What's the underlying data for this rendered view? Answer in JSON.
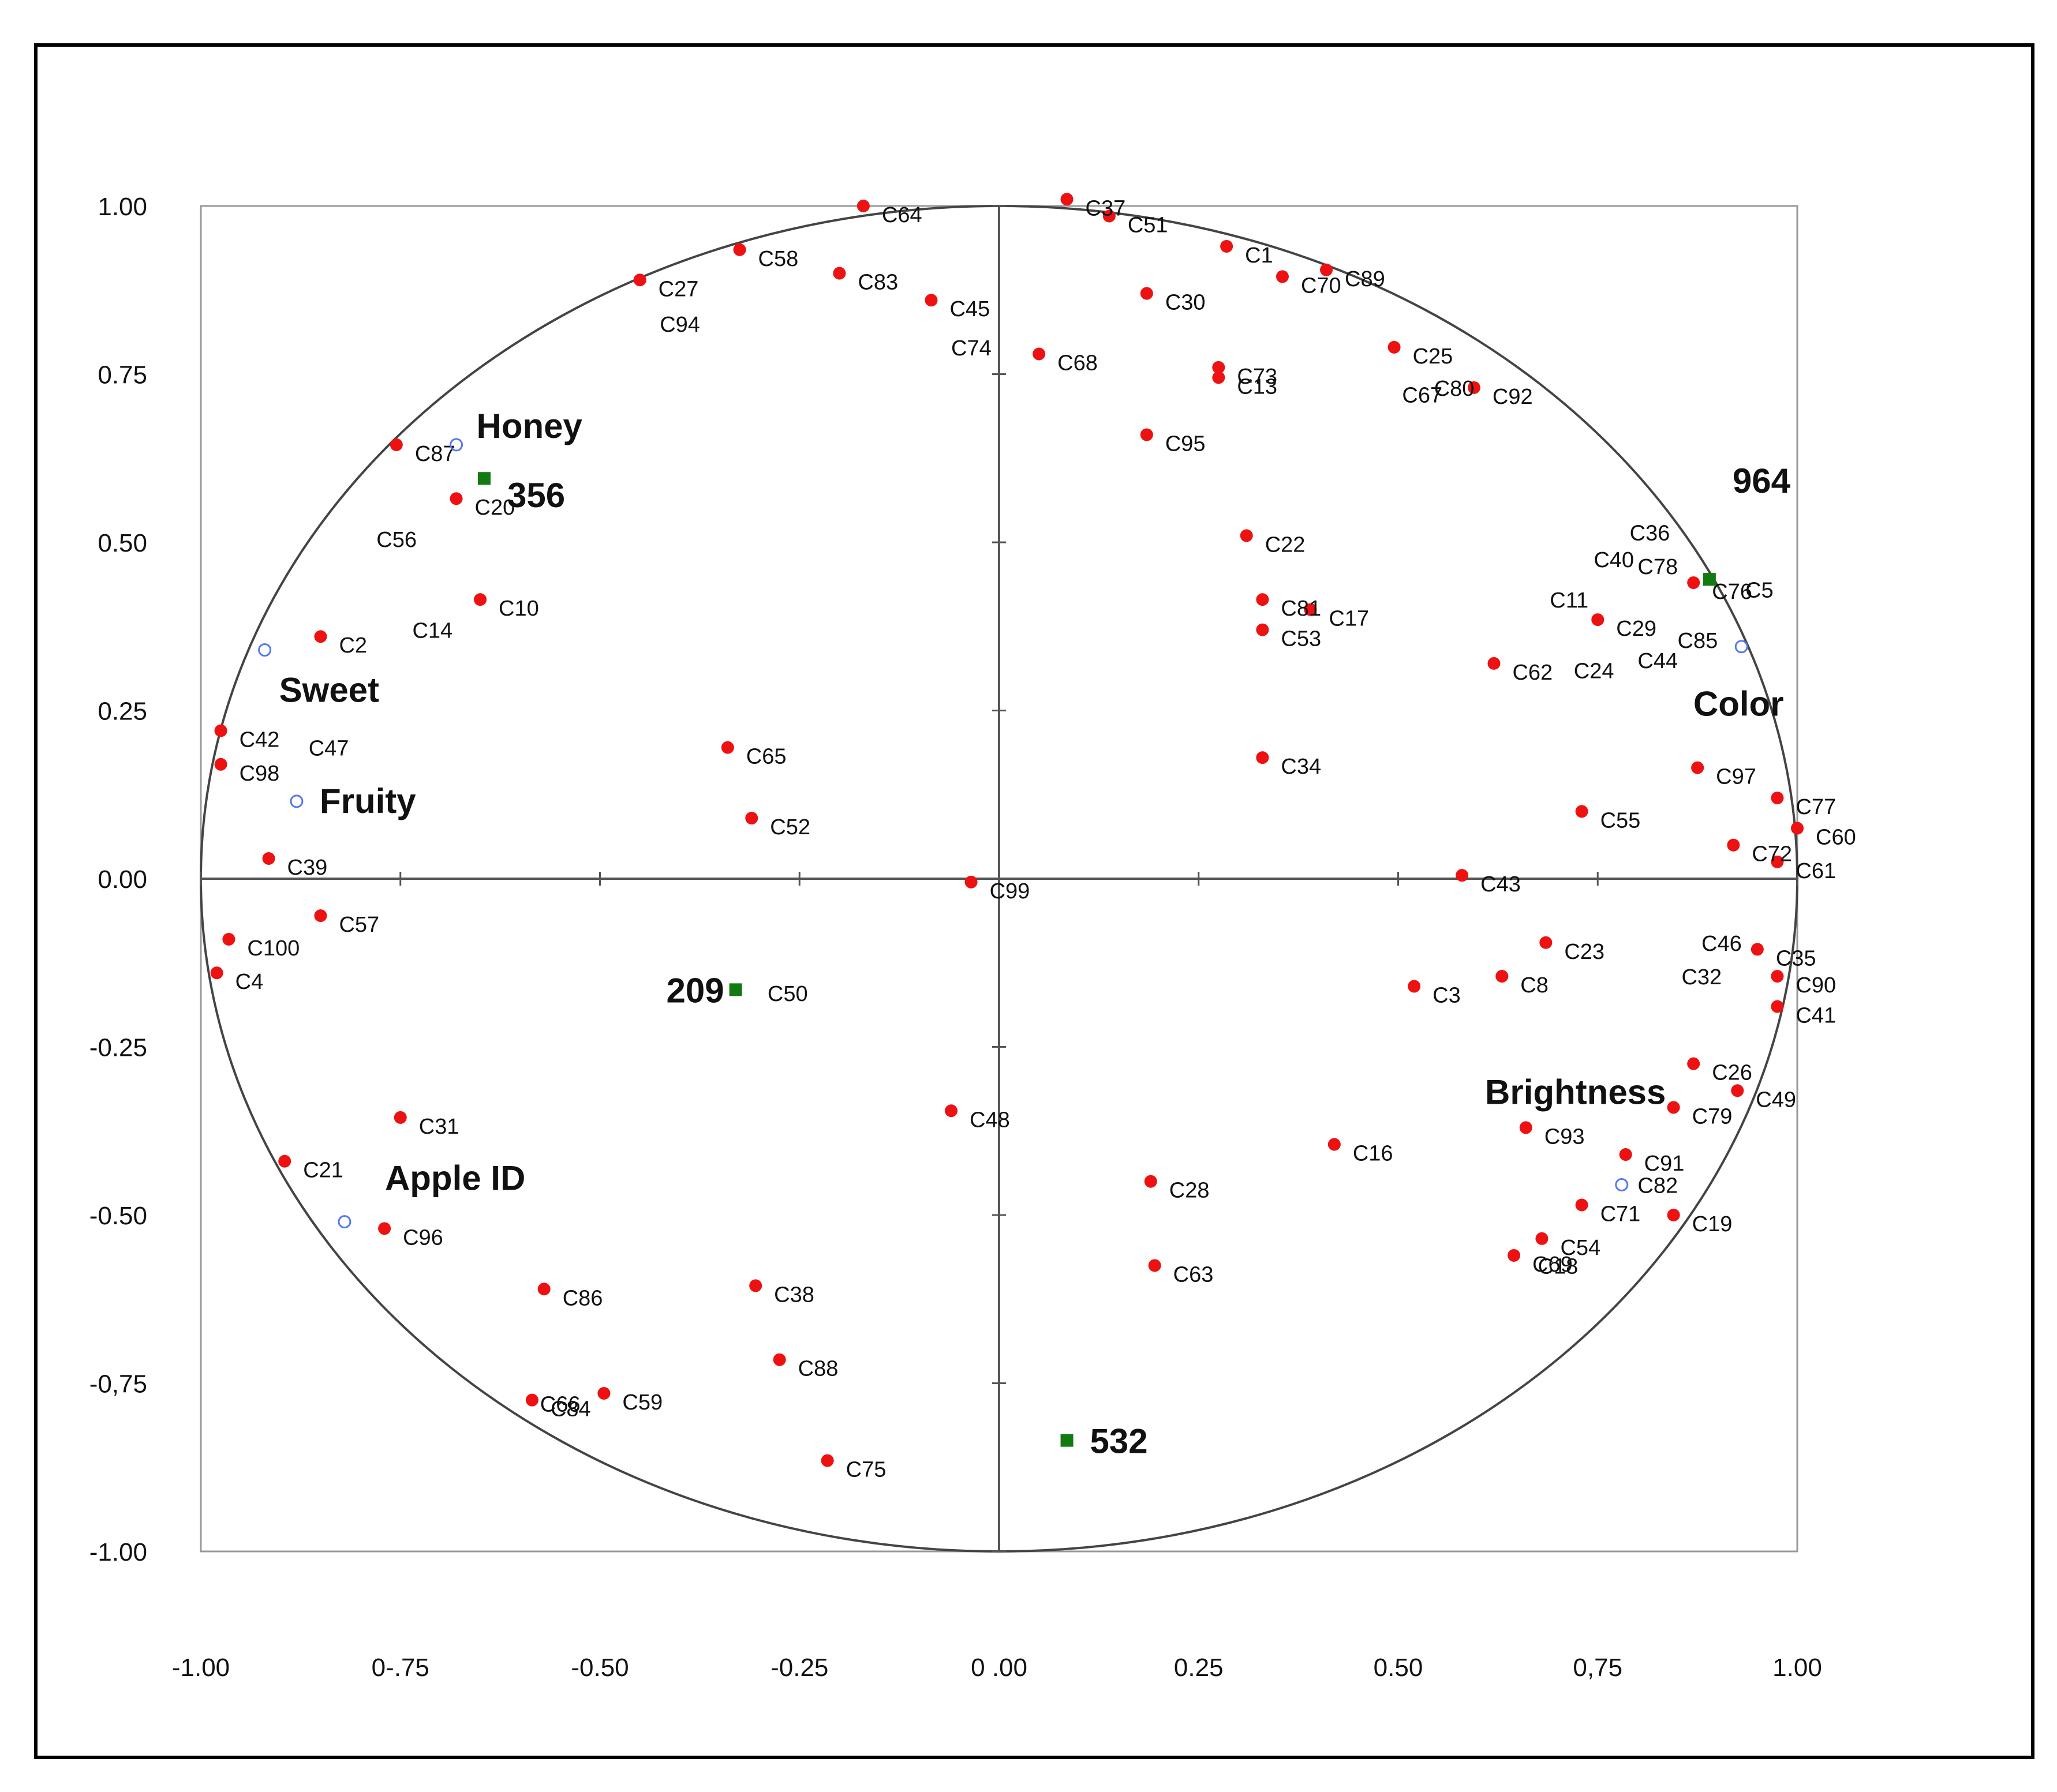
{
  "chart_data": {
    "type": "scatter",
    "title": "",
    "xlabel": "",
    "ylabel": "",
    "xlim": [
      -1.0,
      1.0
    ],
    "ylim": [
      -1.0,
      1.0
    ],
    "grid": false,
    "legend": "none",
    "x_tick_labels": [
      "-1.00",
      "0-.75",
      "-0.50",
      "-0.25",
      "0 .00",
      "0.25",
      "0.50",
      "0,75",
      "1.00"
    ],
    "y_tick_labels": [
      "1.00",
      "0.75",
      "0.50",
      "0.25",
      "0.00",
      "-0.25",
      "-0.50",
      "-0,75",
      "-1.00"
    ],
    "colors": {
      "consumer": "#ee1111",
      "product": "#117a11",
      "attribute": "#5577ee",
      "circle": "#444444",
      "frame": "#000000"
    },
    "series": [
      {
        "type": "consumers",
        "points": [
          {
            "label": "C64",
            "x": -0.17,
            "y": 1.0
          },
          {
            "label": "C37",
            "x": 0.085,
            "y": 1.01
          },
          {
            "label": "C51",
            "x": 0.138,
            "y": 0.985
          },
          {
            "label": "C1",
            "x": 0.285,
            "y": 0.94
          },
          {
            "label": "C58",
            "x": -0.325,
            "y": 0.935
          },
          {
            "label": "C83",
            "x": -0.2,
            "y": 0.9
          },
          {
            "label": "C89",
            "x": 0.41,
            "y": 0.905
          },
          {
            "label": "C70",
            "x": 0.355,
            "y": 0.895
          },
          {
            "label": "C27",
            "x": -0.45,
            "y": 0.89
          },
          {
            "label": "C30",
            "x": 0.185,
            "y": 0.87
          },
          {
            "label": "C45",
            "x": -0.085,
            "y": 0.86
          },
          {
            "label": "C25",
            "x": 0.495,
            "y": 0.79
          },
          {
            "label": "C68",
            "x": 0.05,
            "y": 0.78
          },
          {
            "label": "C73",
            "x": 0.275,
            "y": 0.76
          },
          {
            "label": "C13",
            "x": 0.275,
            "y": 0.745
          },
          {
            "label": "C92",
            "x": 0.595,
            "y": 0.73
          },
          {
            "label": "C95",
            "x": 0.185,
            "y": 0.66
          },
          {
            "label": "C87",
            "x": -0.755,
            "y": 0.645
          },
          {
            "label": "C20",
            "x": -0.68,
            "y": 0.565
          },
          {
            "label": "C22",
            "x": 0.31,
            "y": 0.51
          },
          {
            "label": "C76",
            "x": 0.87,
            "y": 0.44
          },
          {
            "label": "C10",
            "x": -0.65,
            "y": 0.415
          },
          {
            "label": "C81",
            "x": 0.33,
            "y": 0.415
          },
          {
            "label": "C17",
            "x": 0.39,
            "y": 0.4
          },
          {
            "label": "C29",
            "x": 0.75,
            "y": 0.385
          },
          {
            "label": "C53",
            "x": 0.33,
            "y": 0.37
          },
          {
            "label": "C2",
            "x": -0.85,
            "y": 0.36
          },
          {
            "label": "C62",
            "x": 0.62,
            "y": 0.32
          },
          {
            "label": "C42",
            "x": -0.975,
            "y": 0.22
          },
          {
            "label": "C65",
            "x": -0.34,
            "y": 0.195
          },
          {
            "label": "C98",
            "x": -0.975,
            "y": 0.17
          },
          {
            "label": "C34",
            "x": 0.33,
            "y": 0.18
          },
          {
            "label": "C97",
            "x": 0.875,
            "y": 0.165
          },
          {
            "label": "C77",
            "x": 0.975,
            "y": 0.12
          },
          {
            "label": "C55",
            "x": 0.73,
            "y": 0.1
          },
          {
            "label": "C52",
            "x": -0.31,
            "y": 0.09
          },
          {
            "label": "C60",
            "x": 1.0,
            "y": 0.075
          },
          {
            "label": "C72",
            "x": 0.92,
            "y": 0.05
          },
          {
            "label": "C39",
            "x": -0.915,
            "y": 0.03
          },
          {
            "label": "C43",
            "x": 0.58,
            "y": 0.005
          },
          {
            "label": "C99",
            "x": -0.035,
            "y": -0.005
          },
          {
            "label": "C61",
            "x": 0.975,
            "y": 0.025
          },
          {
            "label": "C57",
            "x": -0.85,
            "y": -0.055
          },
          {
            "label": "C100",
            "x": -0.965,
            "y": -0.09
          },
          {
            "label": "C23",
            "x": 0.685,
            "y": -0.095
          },
          {
            "label": "C35",
            "x": 0.95,
            "y": -0.105
          },
          {
            "label": "C4",
            "x": -0.98,
            "y": -0.14
          },
          {
            "label": "C8",
            "x": 0.63,
            "y": -0.145
          },
          {
            "label": "C90",
            "x": 0.975,
            "y": -0.145
          },
          {
            "label": "C3",
            "x": 0.52,
            "y": -0.16
          },
          {
            "label": "C41",
            "x": 0.975,
            "y": -0.19
          },
          {
            "label": "C26",
            "x": 0.87,
            "y": -0.275
          },
          {
            "label": "C49",
            "x": 0.925,
            "y": -0.315
          },
          {
            "label": "C79",
            "x": 0.845,
            "y": -0.34
          },
          {
            "label": "C48",
            "x": -0.06,
            "y": -0.345
          },
          {
            "label": "C31",
            "x": -0.75,
            "y": -0.355
          },
          {
            "label": "C93",
            "x": 0.66,
            "y": -0.37
          },
          {
            "label": "C16",
            "x": 0.42,
            "y": -0.395
          },
          {
            "label": "C91",
            "x": 0.785,
            "y": -0.41
          },
          {
            "label": "C21",
            "x": -0.895,
            "y": -0.42
          },
          {
            "label": "C28",
            "x": 0.19,
            "y": -0.45
          },
          {
            "label": "C71",
            "x": 0.73,
            "y": -0.485
          },
          {
            "label": "C19",
            "x": 0.845,
            "y": -0.5
          },
          {
            "label": "C96",
            "x": -0.77,
            "y": -0.52
          },
          {
            "label": "C54",
            "x": 0.68,
            "y": -0.535
          },
          {
            "label": "C69",
            "x": 0.645,
            "y": -0.56
          },
          {
            "label": "C63",
            "x": 0.195,
            "y": -0.575
          },
          {
            "label": "C86",
            "x": -0.57,
            "y": -0.61
          },
          {
            "label": "C38",
            "x": -0.305,
            "y": -0.605
          },
          {
            "label": "C88",
            "x": -0.275,
            "y": -0.715
          },
          {
            "label": "C59",
            "x": -0.495,
            "y": -0.765
          },
          {
            "label": "C84",
            "x": -0.585,
            "y": -0.775
          },
          {
            "label": "C75",
            "x": -0.215,
            "y": -0.865
          }
        ],
        "unmarked_labels": [
          {
            "label": "C94",
            "x": -0.425,
            "y": 0.825
          },
          {
            "label": "C74",
            "x": -0.06,
            "y": 0.79
          },
          {
            "label": "C67",
            "x": 0.505,
            "y": 0.72
          },
          {
            "label": "C80",
            "x": 0.545,
            "y": 0.73
          },
          {
            "label": "C36",
            "x": 0.79,
            "y": 0.515
          },
          {
            "label": "C40",
            "x": 0.745,
            "y": 0.475
          },
          {
            "label": "C78",
            "x": 0.8,
            "y": 0.465
          },
          {
            "label": "C5",
            "x": 0.935,
            "y": 0.43
          },
          {
            "label": "C11",
            "x": 0.69,
            "y": 0.415
          },
          {
            "label": "C56",
            "x": -0.78,
            "y": 0.505
          },
          {
            "label": "C14",
            "x": -0.735,
            "y": 0.37
          },
          {
            "label": "C85",
            "x": 0.85,
            "y": 0.355
          },
          {
            "label": "C44",
            "x": 0.8,
            "y": 0.325
          },
          {
            "label": "C24",
            "x": 0.72,
            "y": 0.31
          },
          {
            "label": "C47",
            "x": -0.865,
            "y": 0.195
          },
          {
            "label": "C46",
            "x": 0.88,
            "y": -0.095
          },
          {
            "label": "C32",
            "x": 0.855,
            "y": -0.145
          },
          {
            "label": "C82",
            "x": 0.8,
            "y": -0.455
          },
          {
            "label": "C18",
            "x": 0.675,
            "y": -0.575
          },
          {
            "label": "C66",
            "x": -0.575,
            "y": -0.78
          },
          {
            "label": "C50",
            "x": -0.29,
            "y": -0.17
          }
        ]
      },
      {
        "type": "products",
        "points": [
          {
            "label": "356",
            "x": -0.645,
            "y": 0.595
          },
          {
            "label": "964",
            "x": 0.89,
            "y": 0.445
          },
          {
            "label": "209",
            "x": -0.33,
            "y": -0.165
          },
          {
            "label": "532",
            "x": 0.085,
            "y": -0.835
          }
        ]
      },
      {
        "type": "attributes",
        "points": [
          {
            "label": "Honey",
            "x": -0.68,
            "y": 0.645
          },
          {
            "label": "Sweet",
            "x": -0.92,
            "y": 0.34
          },
          {
            "label": "Fruity",
            "x": -0.88,
            "y": 0.115
          },
          {
            "label": "Color",
            "x": 0.93,
            "y": 0.345
          },
          {
            "label": "Brightness",
            "x": 0.78,
            "y": -0.455
          },
          {
            "label": "Apple ID",
            "x": -0.82,
            "y": -0.51
          }
        ]
      }
    ]
  }
}
